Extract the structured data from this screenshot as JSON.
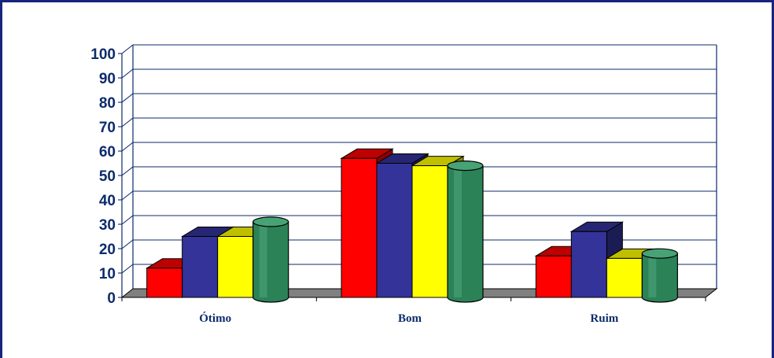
{
  "chart_data": {
    "type": "bar",
    "style": "3d",
    "categories": [
      "Ótimo",
      "Bom",
      "Ruim"
    ],
    "series": [
      {
        "color": "#ff0000",
        "shape": "box",
        "values": [
          12,
          57,
          17
        ]
      },
      {
        "color": "#333399",
        "shape": "box",
        "values": [
          25,
          55,
          27
        ]
      },
      {
        "color": "#ffff00",
        "shape": "box",
        "values": [
          25,
          54,
          16
        ]
      },
      {
        "color": "#339966",
        "shape": "cylinder",
        "values": [
          31,
          54,
          18
        ]
      }
    ],
    "yticks": [
      "0",
      "10",
      "20",
      "30",
      "40",
      "50",
      "60",
      "70",
      "80",
      "90",
      "100"
    ],
    "ylim": [
      0,
      100
    ],
    "grid": true,
    "legend": "none",
    "colors": {
      "axis_text": "#0d2b6b",
      "grid": "#0d2b6b",
      "floor": "#808080",
      "frame": "#1a237e"
    }
  }
}
